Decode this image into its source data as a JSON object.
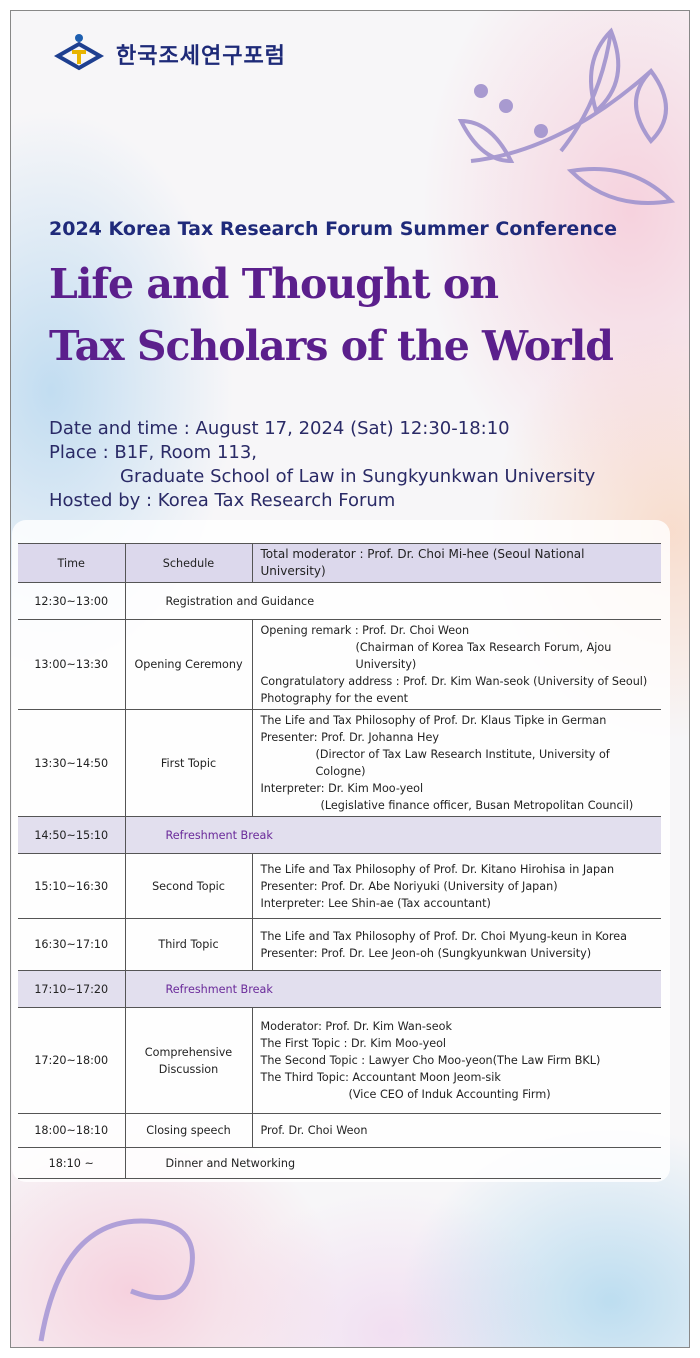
{
  "logo": {
    "text": "한국조세연구포럼",
    "emblem_text": "Korea Tax Research Forum"
  },
  "subtitle": "2024 Korea Tax Research Forum Summer Conference",
  "title": [
    "Life and Thought on",
    "Tax Scholars of the World"
  ],
  "info": {
    "date": "Date and time : August 17, 2024 (Sat) 12:30-18:10",
    "place": "Place : B1F, Room 113,",
    "place2": "Graduate School of Law in Sungkyunkwan University",
    "host": "Hosted by : Korea Tax Research Forum"
  },
  "table": {
    "header": [
      "Time",
      "Schedule",
      "Total moderator : Prof. Dr. Choi Mi-hee (Seoul National University)"
    ],
    "rows": [
      {
        "time": "12:30~13:00",
        "span": "Registration and Guidance",
        "h": 37
      },
      {
        "time": "13:00~13:30",
        "schedule": "Opening Ceremony",
        "h": 84,
        "details": [
          [
            "Opening remark : Prof. Dr. Choi Weon",
            ""
          ],
          [
            "(Chairman of Korea Tax Research Forum, Ajou University)",
            "ind1"
          ],
          [
            "Congratulatory address : Prof. Dr. Kim Wan-seok (University of Seoul)",
            ""
          ],
          [
            "Photography for the event",
            ""
          ]
        ]
      },
      {
        "time": "13:30~14:50",
        "schedule": "First Topic",
        "h": 100,
        "details": [
          [
            "The Life and Tax Philosophy of Prof. Dr. Klaus Tipke in German",
            ""
          ],
          [
            "Presenter: Prof. Dr. Johanna Hey",
            ""
          ],
          [
            "(Director of Tax Law Research Institute, University of Cologne)",
            "ind2"
          ],
          [
            "Interpreter: Dr. Kim Moo-yeol",
            ""
          ],
          [
            "(Legislative finance officer, Busan Metropolitan Council)",
            "ind3"
          ]
        ]
      },
      {
        "time": "14:50~15:10",
        "span": "Refreshment Break",
        "break": true,
        "h": 37
      },
      {
        "time": "15:10~16:30",
        "schedule": "Second Topic",
        "h": 65,
        "details": [
          [
            "The Life and Tax Philosophy of Prof. Dr. Kitano Hirohisa in Japan",
            ""
          ],
          [
            "Presenter: Prof. Dr. Abe Noriyuki (University of Japan)",
            ""
          ],
          [
            "Interpreter: Lee Shin-ae (Tax accountant)",
            ""
          ]
        ]
      },
      {
        "time": "16:30~17:10",
        "schedule": "Third Topic",
        "h": 52,
        "details": [
          [
            "The Life and Tax Philosophy of Prof. Dr. Choi Myung-keun in Korea",
            ""
          ],
          [
            "Presenter: Prof. Dr. Lee Jeon-oh (Sungkyunkwan University)",
            ""
          ]
        ]
      },
      {
        "time": "17:10~17:20",
        "span": "Refreshment Break",
        "break": true,
        "h": 37
      },
      {
        "time": "17:20~18:00",
        "schedule": "Comprehensive Discussion",
        "h": 106,
        "details": [
          [
            "Moderator: Prof. Dr. Kim Wan-seok",
            ""
          ],
          [
            "The First Topic : Dr. Kim Moo-yeol",
            ""
          ],
          [
            "The Second Topic : Lawyer Cho Moo-yeon(The Law Firm BKL)",
            ""
          ],
          [
            "The Third Topic: Accountant Moon Jeom-sik",
            ""
          ],
          [
            "(Vice CEO of Induk Accounting Firm)",
            "ind4"
          ]
        ]
      },
      {
        "time": "18:00~18:10",
        "schedule": "Closing speech",
        "h": 34,
        "details": [
          [
            "Prof. Dr. Choi Weon",
            ""
          ]
        ]
      },
      {
        "time": "18:10 ~",
        "span": "Dinner and Networking",
        "h": 31
      }
    ]
  },
  "colors": {
    "title": "#5b1f8c",
    "subtitle": "#1f2a7a",
    "header_bg": "#dcd8ec",
    "break_text": "#6a2a9a"
  }
}
